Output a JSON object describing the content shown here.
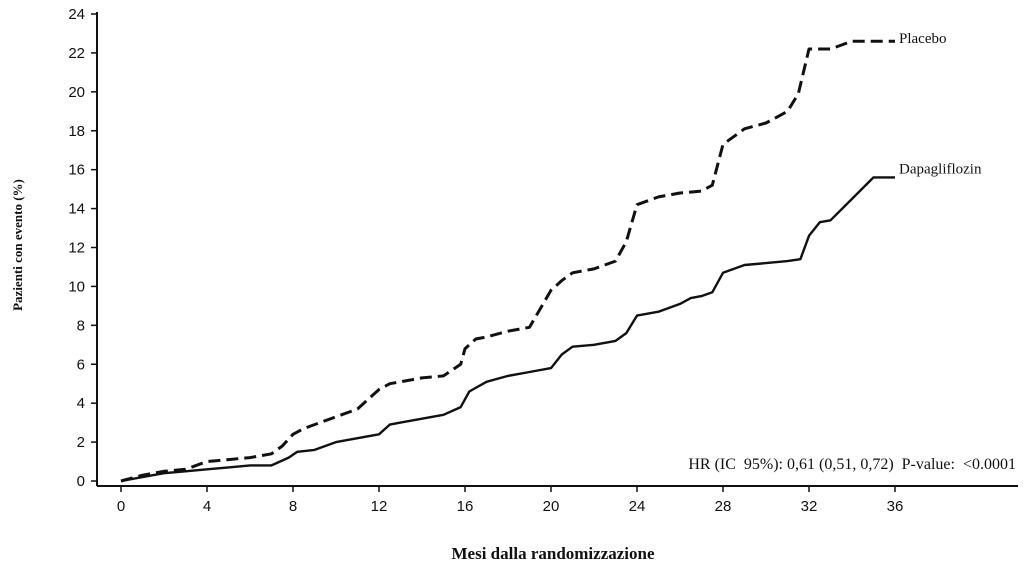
{
  "chart_data": {
    "type": "line",
    "xlabel": "Mesi dalla randomizzazione",
    "ylabel": "Pazienti con evento (%)",
    "xlim": [
      0,
      36
    ],
    "ylim": [
      0,
      24
    ],
    "xticks": [
      0,
      4,
      8,
      12,
      16,
      20,
      24,
      28,
      32,
      36
    ],
    "yticks": [
      0,
      2,
      4,
      6,
      8,
      10,
      12,
      14,
      16,
      18,
      20,
      22,
      24
    ],
    "grid": false,
    "legend": "inline labels at right end of curves",
    "annotation": "HR (IC  95%): 0,61 (0,51, 0,72)  P-value:  <0.0001",
    "series": [
      {
        "name": "Placebo",
        "style": "dashed",
        "x": [
          0,
          1,
          2,
          3,
          4,
          5,
          6,
          7,
          7.5,
          8,
          8.5,
          9,
          10,
          11,
          12,
          12.5,
          13,
          14,
          15,
          15.8,
          16,
          16.5,
          17,
          18,
          19,
          20,
          20.5,
          21,
          22,
          23,
          23.5,
          24,
          25,
          26,
          27,
          27.5,
          28,
          29,
          30,
          31,
          31.5,
          32,
          33,
          34,
          35,
          36
        ],
        "values": [
          0,
          0.3,
          0.5,
          0.6,
          1.0,
          1.1,
          1.2,
          1.4,
          1.8,
          2.4,
          2.7,
          2.9,
          3.3,
          3.7,
          4.7,
          5.0,
          5.1,
          5.3,
          5.4,
          6.0,
          6.8,
          7.3,
          7.4,
          7.7,
          7.9,
          9.8,
          10.3,
          10.7,
          10.9,
          11.3,
          12.3,
          14.2,
          14.6,
          14.8,
          14.9,
          15.2,
          17.3,
          18.1,
          18.4,
          19.0,
          19.9,
          22.2,
          22.2,
          22.6,
          22.6,
          22.6
        ]
      },
      {
        "name": "Dapagliflozin",
        "style": "solid",
        "x": [
          0,
          1,
          2,
          3,
          4,
          5,
          6,
          7,
          7.8,
          8.2,
          9,
          10,
          11,
          12,
          12.5,
          13,
          14,
          15,
          15.8,
          16.2,
          17,
          18,
          19,
          20,
          20.5,
          21,
          22,
          23,
          23.5,
          24,
          25,
          26,
          26.5,
          27,
          27.5,
          28,
          29,
          30,
          31,
          31.6,
          32,
          32.5,
          33,
          34,
          35,
          36
        ],
        "values": [
          0,
          0.2,
          0.4,
          0.5,
          0.6,
          0.7,
          0.8,
          0.8,
          1.2,
          1.5,
          1.6,
          2.0,
          2.2,
          2.4,
          2.9,
          3.0,
          3.2,
          3.4,
          3.8,
          4.6,
          5.1,
          5.4,
          5.6,
          5.8,
          6.5,
          6.9,
          7.0,
          7.2,
          7.6,
          8.5,
          8.7,
          9.1,
          9.4,
          9.5,
          9.7,
          10.7,
          11.1,
          11.2,
          11.3,
          11.4,
          12.6,
          13.3,
          13.4,
          14.5,
          15.6,
          15.6
        ]
      }
    ]
  }
}
